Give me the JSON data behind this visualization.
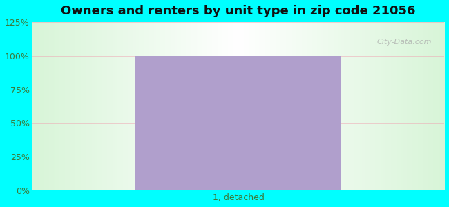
{
  "title": "Owners and renters by unit type in zip code 21056",
  "categories": [
    "1, detached"
  ],
  "values": [
    100
  ],
  "bar_color": "#b09fcc",
  "ylim": [
    0,
    125
  ],
  "yticks": [
    0,
    25,
    50,
    75,
    100,
    125
  ],
  "ytick_labels": [
    "0%",
    "25%",
    "50%",
    "75%",
    "100%",
    "125%"
  ],
  "title_fontsize": 13,
  "tick_fontsize": 9,
  "bar_width": 0.5,
  "watermark": "City-Data.com",
  "grid_color": "#f0a0b0",
  "grid_alpha": 0.5,
  "label_color": "#3a7a3a",
  "fig_bg": "#00ffff",
  "plot_bg_left": "#d8f5d8",
  "plot_bg_right": "#f8fff8",
  "plot_bg_center": "#ffffff"
}
